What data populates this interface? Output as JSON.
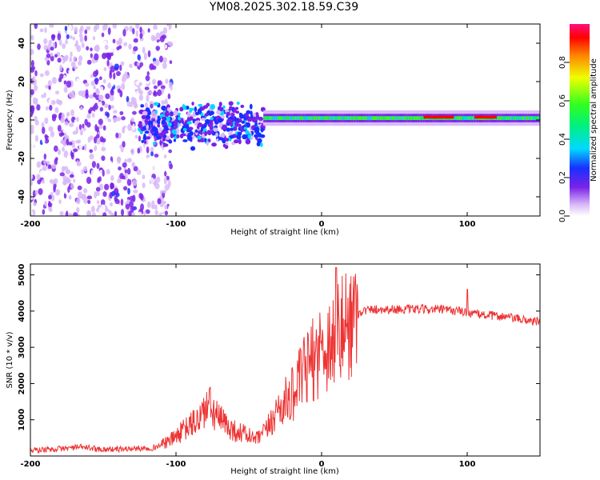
{
  "title": "YM08.2025.302.18.59.C39",
  "colors": {
    "snr_line": "#ee3333",
    "frame": "#000000"
  },
  "chart_data": [
    {
      "type": "heatmap",
      "name": "spectrogram",
      "xlabel": "Height of straight line (km)",
      "ylabel": "Frequency (Hz)",
      "xlim": [
        -200,
        150
      ],
      "ylim": [
        -50,
        50
      ],
      "xticks": [
        -200,
        -100,
        0,
        100
      ],
      "yticks": [
        -40,
        -20,
        0,
        20,
        40
      ],
      "colorbar": {
        "label": "Normalized spectral amplitude",
        "range": [
          0,
          1
        ],
        "ticks": [
          "0.0",
          "0.2",
          "0.4",
          "0.6",
          "0.8"
        ],
        "tick_values": [
          0.0,
          0.2,
          0.4,
          0.6,
          0.8
        ]
      },
      "regions": [
        {
          "x_range": [
            -200,
            -103
          ],
          "freq_range": [
            -50,
            50
          ],
          "amplitude": 0.15,
          "description": "broadband noise"
        },
        {
          "x_range": [
            -125,
            -40
          ],
          "freq_range": [
            -15,
            10
          ],
          "amplitude": 0.35
        },
        {
          "x_range": [
            -40,
            150
          ],
          "freq_range": [
            -2,
            4
          ],
          "amplitude": 0.6
        },
        {
          "x_range": [
            70,
            90
          ],
          "freq_range": [
            0,
            3
          ],
          "amplitude": 0.95
        },
        {
          "x_range": [
            105,
            120
          ],
          "freq_range": [
            0,
            3
          ],
          "amplitude": 0.95
        }
      ]
    },
    {
      "type": "line",
      "name": "snr",
      "xlabel": "Height of straight line (km)",
      "ylabel": "SNR (10 * v/v)",
      "xlim": [
        -200,
        150
      ],
      "ylim": [
        0,
        5300
      ],
      "xticks": [
        -200,
        -100,
        0,
        100
      ],
      "yticks": [
        1000,
        2000,
        3000,
        4000,
        5000
      ],
      "series": [
        {
          "name": "SNR",
          "x": [
            -200,
            -180,
            -165,
            -150,
            -130,
            -115,
            -105,
            -95,
            -85,
            -78,
            -70,
            -60,
            -52,
            -45,
            -38,
            -30,
            -20,
            -12,
            -5,
            0,
            5,
            10,
            15,
            20,
            28,
            35,
            45,
            60,
            80,
            95,
            100,
            110,
            125,
            140,
            150
          ],
          "y": [
            150,
            200,
            250,
            180,
            200,
            230,
            400,
            700,
            1000,
            1400,
            1000,
            700,
            600,
            450,
            700,
            1300,
            1700,
            2300,
            2700,
            3000,
            3100,
            3300,
            3500,
            3800,
            4000,
            4050,
            4050,
            4050,
            4050,
            4000,
            3950,
            3900,
            3850,
            3750,
            3700
          ],
          "annotations": [
            {
              "x": 10,
              "y": 5200,
              "note": "spike"
            },
            {
              "x": 100,
              "y": 4600,
              "note": "spike"
            }
          ]
        }
      ]
    }
  ]
}
